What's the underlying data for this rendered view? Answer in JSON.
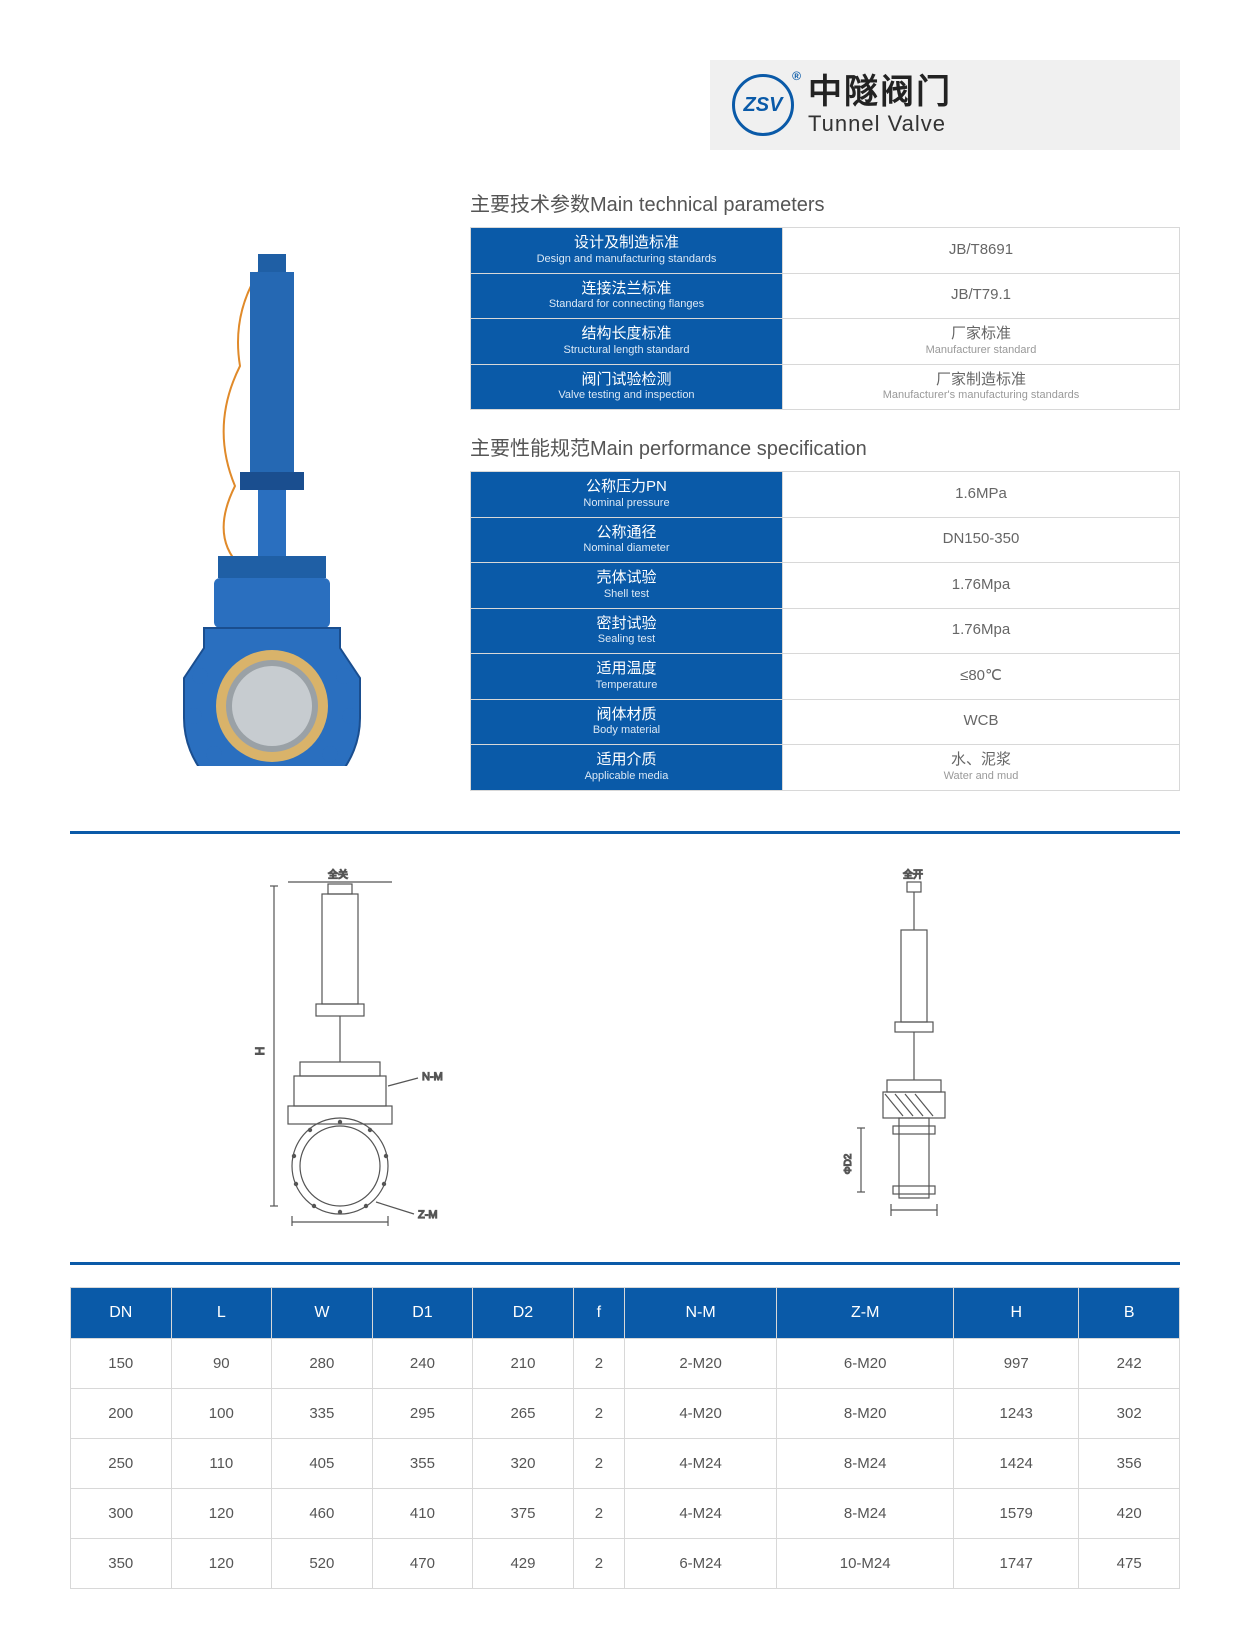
{
  "brand": {
    "logo_text": "ZSV",
    "cn": "中隧阀门",
    "en": "Tunnel Valve"
  },
  "colors": {
    "primary": "#0a5aa8",
    "header_band_bg": "#f0f0f0",
    "border": "#d8d8d8",
    "text": "#555",
    "value_text": "#666",
    "label_sub": "#dbe8f5"
  },
  "section1": {
    "title": "主要技术参数Main technical parameters",
    "rows": [
      {
        "cn": "设计及制造标准",
        "en": "Design and manufacturing standards",
        "val_cn": "JB/T8691",
        "val_en": ""
      },
      {
        "cn": "连接法兰标准",
        "en": "Standard for connecting flanges",
        "val_cn": "JB/T79.1",
        "val_en": ""
      },
      {
        "cn": "结构长度标准",
        "en": "Structural length standard",
        "val_cn": "厂家标准",
        "val_en": "Manufacturer standard"
      },
      {
        "cn": "阀门试验检测",
        "en": "Valve testing and inspection",
        "val_cn": "厂家制造标准",
        "val_en": "Manufacturer's manufacturing standards"
      }
    ]
  },
  "section2": {
    "title": "主要性能规范Main performance specification",
    "rows": [
      {
        "cn": "公称压力PN",
        "en": "Nominal pressure",
        "val_cn": "1.6MPa",
        "val_en": ""
      },
      {
        "cn": "公称通径",
        "en": "Nominal diameter",
        "val_cn": "DN150-350",
        "val_en": ""
      },
      {
        "cn": "壳体试验",
        "en": "Shell test",
        "val_cn": "1.76Mpa",
        "val_en": ""
      },
      {
        "cn": "密封试验",
        "en": "Sealing test",
        "val_cn": "1.76Mpa",
        "val_en": ""
      },
      {
        "cn": "适用温度",
        "en": "Temperature",
        "val_cn": "≤80℃",
        "val_en": ""
      },
      {
        "cn": "阀体材质",
        "en": "Body material",
        "val_cn": "WCB",
        "val_en": ""
      },
      {
        "cn": "适用介质",
        "en": "Applicable media",
        "val_cn": "水、泥浆",
        "val_en": "Water and mud"
      }
    ]
  },
  "diagram_labels": {
    "left_top": "全关",
    "right_top": "全开",
    "nm": "N-M",
    "zm": "Z-M",
    "dd2": "ΦD2"
  },
  "dims_table": {
    "columns": [
      "DN",
      "L",
      "W",
      "D1",
      "D2",
      "f",
      "N-M",
      "Z-M",
      "H",
      "B"
    ],
    "rows": [
      [
        "150",
        "90",
        "280",
        "240",
        "210",
        "2",
        "2-M20",
        "6-M20",
        "997",
        "242"
      ],
      [
        "200",
        "100",
        "335",
        "295",
        "265",
        "2",
        "4-M20",
        "8-M20",
        "1243",
        "302"
      ],
      [
        "250",
        "110",
        "405",
        "355",
        "320",
        "2",
        "4-M24",
        "8-M24",
        "1424",
        "356"
      ],
      [
        "300",
        "120",
        "460",
        "410",
        "375",
        "2",
        "4-M24",
        "8-M24",
        "1579",
        "420"
      ],
      [
        "350",
        "120",
        "520",
        "470",
        "429",
        "2",
        "6-M24",
        "10-M24",
        "1747",
        "475"
      ]
    ]
  }
}
